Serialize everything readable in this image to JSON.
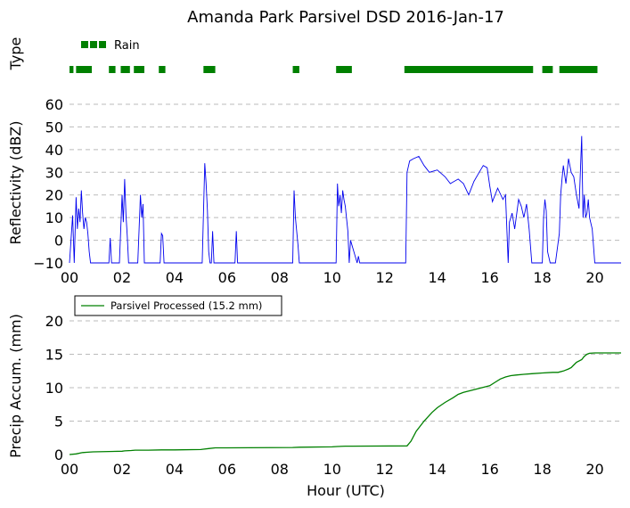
{
  "title": "Amanda Park Parsivel DSD 2016-Jan-17",
  "colors": {
    "rain": "#008000",
    "reflectivity": "#0000ee",
    "accum": "#008000",
    "grid": "#bbbbbb"
  },
  "chart_data": [
    {
      "panel": "type",
      "type": "timeline",
      "ylabel": "Type",
      "legend": {
        "label": "Rain",
        "placement": "top-left"
      },
      "xlim": [
        0,
        21
      ],
      "segments": [
        [
          0.0,
          0.15
        ],
        [
          0.25,
          0.85
        ],
        [
          1.5,
          1.75
        ],
        [
          1.95,
          2.3
        ],
        [
          2.45,
          2.85
        ],
        [
          3.4,
          3.65
        ],
        [
          5.1,
          5.55
        ],
        [
          8.5,
          8.75
        ],
        [
          10.15,
          10.75
        ],
        [
          12.75,
          17.65
        ],
        [
          18.0,
          18.4
        ],
        [
          18.65,
          20.1
        ]
      ]
    },
    {
      "panel": "reflectivity",
      "type": "line",
      "ylabel": "Reflectivity (dBZ)",
      "xlim": [
        0,
        21
      ],
      "ylim": [
        -10,
        60
      ],
      "yticks": [
        -10,
        0,
        10,
        20,
        30,
        40,
        50,
        60
      ],
      "xticks": [
        "00",
        "02",
        "04",
        "06",
        "08",
        "10",
        "12",
        "14",
        "16",
        "18",
        "20"
      ],
      "grid": true,
      "x": [
        0.0,
        0.12,
        0.18,
        0.25,
        0.3,
        0.35,
        0.4,
        0.45,
        0.5,
        0.55,
        0.6,
        0.65,
        0.7,
        0.75,
        0.8,
        0.85,
        0.9,
        1.5,
        1.55,
        1.6,
        1.9,
        2.0,
        2.05,
        2.1,
        2.15,
        2.2,
        2.25,
        2.3,
        2.35,
        2.6,
        2.7,
        2.75,
        2.8,
        2.85,
        3.45,
        3.5,
        3.55,
        3.6,
        5.05,
        5.15,
        5.2,
        5.25,
        5.3,
        5.35,
        5.4,
        5.45,
        5.5,
        5.55,
        6.3,
        6.35,
        6.4,
        8.5,
        8.55,
        8.6,
        8.7,
        8.75,
        10.15,
        10.2,
        10.25,
        10.3,
        10.35,
        10.4,
        10.45,
        10.5,
        10.6,
        10.65,
        10.7,
        10.95,
        11.0,
        11.05,
        12.8,
        12.85,
        12.95,
        13.1,
        13.3,
        13.5,
        13.7,
        14.0,
        14.3,
        14.5,
        14.8,
        15.0,
        15.2,
        15.4,
        15.6,
        15.75,
        15.9,
        16.0,
        16.1,
        16.3,
        16.5,
        16.6,
        16.65,
        16.7,
        16.75,
        16.85,
        16.95,
        17.1,
        17.2,
        17.3,
        17.4,
        17.5,
        17.6,
        17.7,
        18.0,
        18.05,
        18.1,
        18.15,
        18.2,
        18.3,
        18.4,
        18.5,
        18.65,
        18.7,
        18.75,
        18.8,
        18.9,
        19.0,
        19.1,
        19.2,
        19.3,
        19.4,
        19.5,
        19.55,
        19.6,
        19.65,
        19.7,
        19.75,
        19.8,
        19.9,
        20.0,
        20.1,
        21.0
      ],
      "y": [
        -10,
        11,
        -10,
        19,
        5,
        14,
        8,
        22,
        12,
        5,
        10,
        8,
        3,
        -5,
        -10,
        -10,
        -10,
        -10,
        1,
        -10,
        -10,
        20,
        8,
        27,
        11,
        2,
        -10,
        -10,
        -10,
        -10,
        20,
        10,
        16,
        -10,
        -10,
        3,
        2,
        -10,
        -10,
        34,
        25,
        13,
        -5,
        -10,
        -10,
        4,
        -10,
        -10,
        -10,
        4,
        -10,
        -10,
        22,
        10,
        -2,
        -10,
        -10,
        25,
        15,
        20,
        12,
        22,
        18,
        15,
        4,
        -10,
        0,
        -10,
        -7,
        -10,
        -10,
        30,
        35,
        36,
        37,
        33,
        30,
        31,
        28,
        25,
        27,
        25,
        20,
        26,
        30,
        33,
        32,
        24,
        17,
        23,
        18,
        20,
        5,
        -10,
        8,
        12,
        5,
        18,
        15,
        10,
        16,
        5,
        -10,
        -10,
        -10,
        10,
        18,
        13,
        -5,
        -10,
        -10,
        -10,
        3,
        20,
        27,
        33,
        25,
        36,
        30,
        28,
        20,
        14,
        46,
        10,
        20,
        10,
        12,
        18,
        10,
        5,
        -10,
        -10,
        -10
      ]
    },
    {
      "panel": "accumulation",
      "type": "line",
      "ylabel": "Precip Accum. (mm)",
      "xlabel": "Hour (UTC)",
      "xlim": [
        0,
        21
      ],
      "ylim": [
        0,
        24
      ],
      "yticks": [
        0,
        5,
        10,
        15,
        20
      ],
      "xticks": [
        "00",
        "02",
        "04",
        "06",
        "08",
        "10",
        "12",
        "14",
        "16",
        "18",
        "20"
      ],
      "grid": true,
      "legend": {
        "label": "Parsivel Processed (15.2 mm)",
        "placement": "top-left"
      },
      "x": [
        0.0,
        0.25,
        0.5,
        0.7,
        0.9,
        1.5,
        2.0,
        2.1,
        2.35,
        2.5,
        3.0,
        3.5,
        4.0,
        5.0,
        5.1,
        5.3,
        5.55,
        6.0,
        8.5,
        8.75,
        10.0,
        10.2,
        10.5,
        10.75,
        12.85,
        13.0,
        13.2,
        13.5,
        13.8,
        14.0,
        14.3,
        14.6,
        14.8,
        15.0,
        15.3,
        15.6,
        15.8,
        16.0,
        16.2,
        16.4,
        16.6,
        16.8,
        17.0,
        17.3,
        17.6,
        18.0,
        18.4,
        18.6,
        18.8,
        19.0,
        19.1,
        19.2,
        19.3,
        19.5,
        19.6,
        19.7,
        19.8,
        20.0,
        20.1,
        21.0
      ],
      "y": [
        0.0,
        0.1,
        0.3,
        0.35,
        0.4,
        0.45,
        0.5,
        0.55,
        0.6,
        0.65,
        0.65,
        0.7,
        0.7,
        0.75,
        0.8,
        0.9,
        1.0,
        1.0,
        1.05,
        1.1,
        1.15,
        1.2,
        1.25,
        1.25,
        1.3,
        2.0,
        3.5,
        5.0,
        6.3,
        7.0,
        7.8,
        8.5,
        9.0,
        9.3,
        9.6,
        9.9,
        10.1,
        10.3,
        10.8,
        11.3,
        11.6,
        11.8,
        11.9,
        12.0,
        12.1,
        12.2,
        12.3,
        12.3,
        12.5,
        12.8,
        13.0,
        13.4,
        13.8,
        14.2,
        14.7,
        15.0,
        15.15,
        15.2,
        15.2,
        15.2
      ]
    }
  ]
}
